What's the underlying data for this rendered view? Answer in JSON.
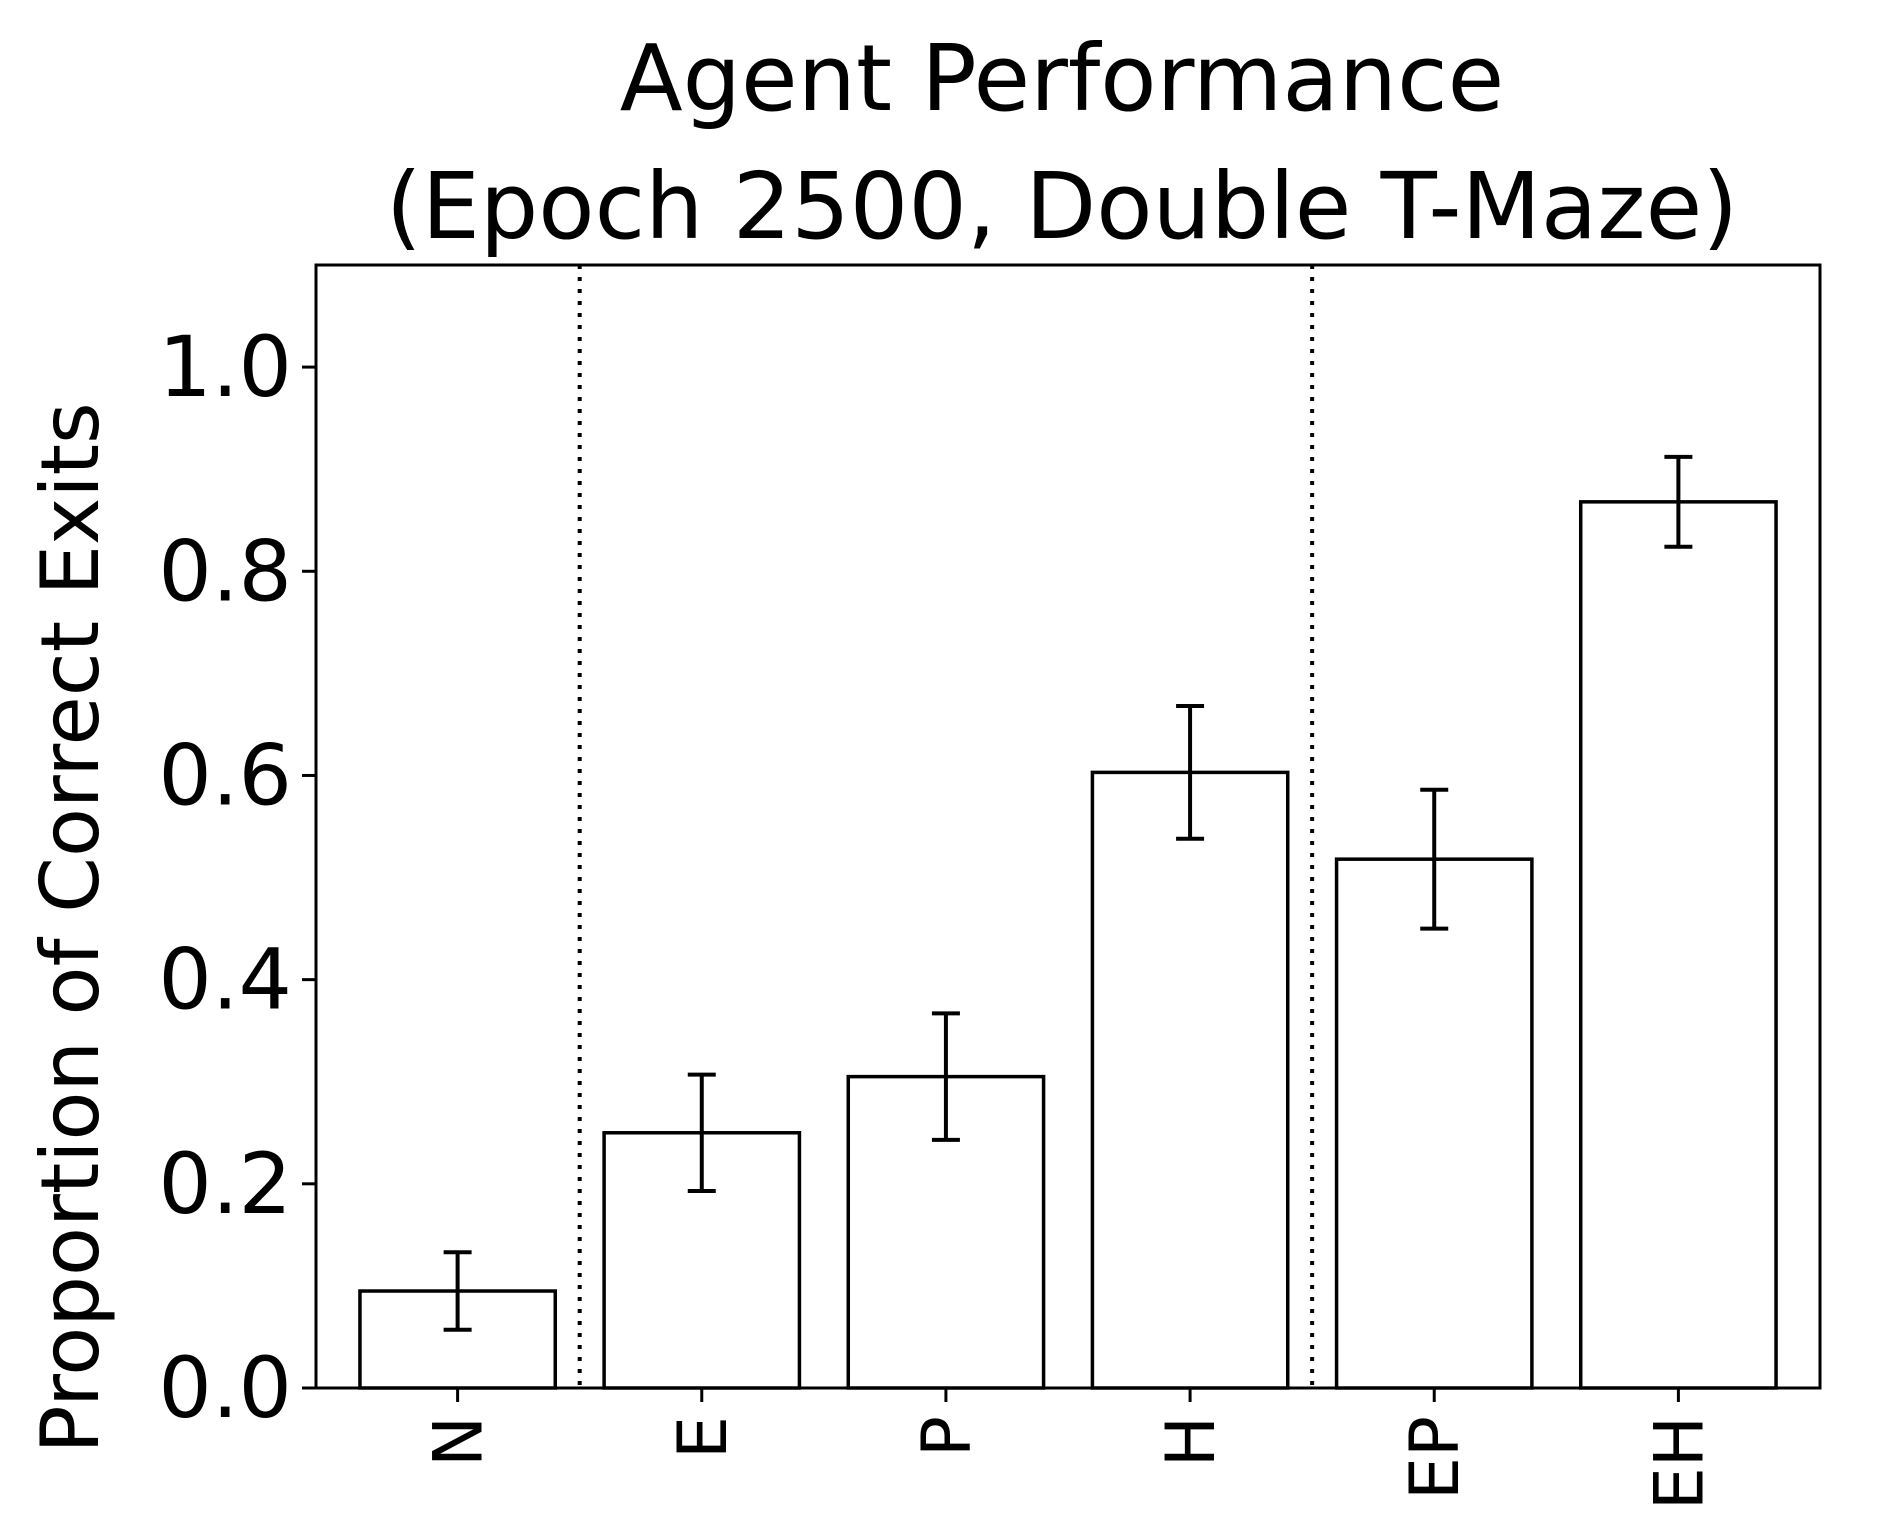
{
  "chart_data": {
    "type": "bar",
    "title_line1": "Agent Performance",
    "title_line2": "(Epoch 2500, Double T-Maze)",
    "xlabel": "",
    "ylabel": "Proportion of Correct Exits",
    "ylim": [
      0,
      1.1
    ],
    "yticks": [
      0.0,
      0.2,
      0.4,
      0.6,
      0.8,
      1.0
    ],
    "ytick_labels": [
      "0.0",
      "0.2",
      "0.4",
      "0.6",
      "0.8",
      "1.0"
    ],
    "categories": [
      "N",
      "E",
      "P",
      "H",
      "EP",
      "EH"
    ],
    "values": [
      0.095,
      0.25,
      0.305,
      0.603,
      0.518,
      0.868
    ],
    "errors": [
      0.038,
      0.057,
      0.062,
      0.065,
      0.068,
      0.044
    ],
    "separators_after": [
      0,
      3
    ],
    "grid": false,
    "bar_fill": "#ffffff",
    "bar_edge": "#000000"
  }
}
